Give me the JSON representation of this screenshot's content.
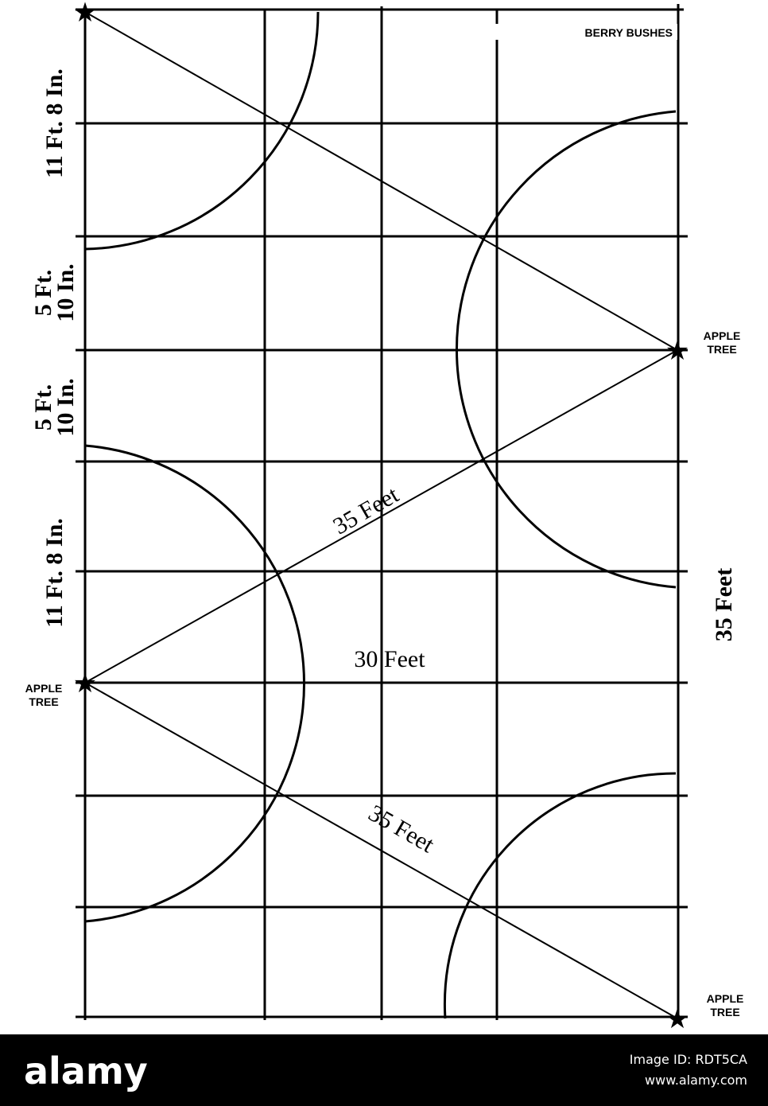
{
  "diagram": {
    "corner_label": "BERRY BUSHES",
    "apple_trees": [
      {
        "lines": [
          "APPLE",
          "TREE"
        ]
      },
      {
        "lines": [
          "APPLE",
          "TREE"
        ]
      },
      {
        "lines": [
          "APPLE",
          "TREE"
        ]
      }
    ],
    "left_spacings": [
      {
        "lines": [
          "11 Ft. 8 In."
        ]
      },
      {
        "lines": [
          "5 Ft.",
          "10 In."
        ]
      },
      {
        "lines": [
          "5 Ft.",
          "10 In."
        ]
      },
      {
        "lines": [
          "11 Ft. 8 In."
        ]
      }
    ],
    "diagonal_distances": [
      "35 Feet",
      "35 Feet"
    ],
    "width_label": "30 Feet",
    "height_label": "35 Feet"
  },
  "footer": {
    "brand": "alamy",
    "image_id": "Image ID: RDT5CA",
    "url": "www.alamy.com"
  }
}
